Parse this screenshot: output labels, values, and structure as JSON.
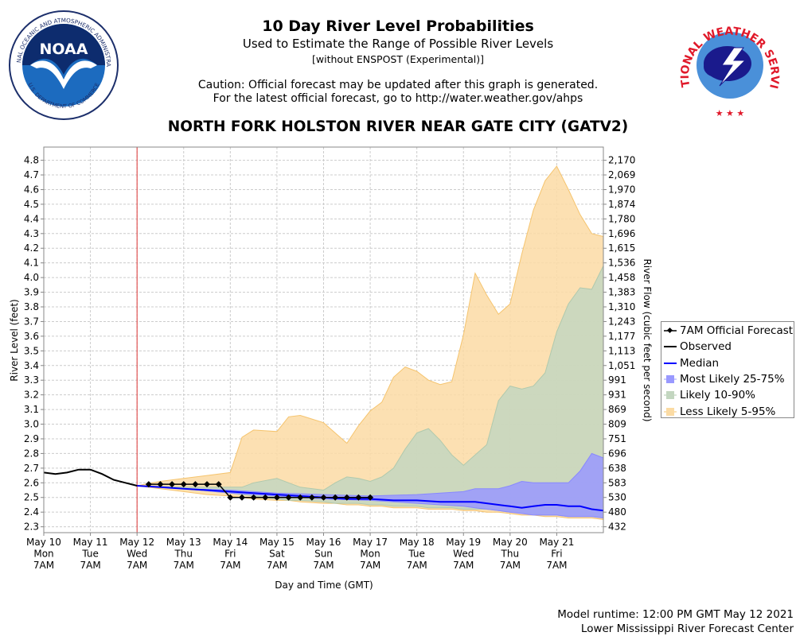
{
  "header": {
    "title": "10 Day River Level Probabilities",
    "subtitle": "Used to Estimate the Range of Possible River Levels",
    "subtitle2": "[without ENSPOST (Experimental)]",
    "caution_line1": "Caution: Official forecast may be updated after this graph is generated.",
    "caution_line2": "For the latest official forecast, go to http://water.weather.gov/ahps",
    "station": "NORTH FORK HOLSTON RIVER NEAR GATE CITY (GATV2)"
  },
  "logos": {
    "noaa_text": "NOAA",
    "noaa_ring": "NATIONAL OCEANIC AND ATMOSPHERIC ADMINISTRATION",
    "noaa_ring_bottom": "U.S. DEPARTMENT OF COMMERCE",
    "nws_ring": "NATIONAL WEATHER SERVICE"
  },
  "colors": {
    "observed": "#000000",
    "median": "#0000ff",
    "band_25_75": "#9999ff",
    "band_10_90": "#c3d6c0",
    "band_5_95": "#fbdba4",
    "now_line": "#dd3333"
  },
  "chart_data": {
    "type": "area",
    "xlabel": "Day and Time (GMT)",
    "ylabel": "River Level (feet)",
    "ylabel_right": "River Flow (cubic feet per second)",
    "ylim": [
      2.26,
      4.89
    ],
    "x_range_days": [
      0,
      12
    ],
    "x_ticks": [
      {
        "d": 0,
        "l1": "May 10",
        "l2": "Mon",
        "l3": "7AM"
      },
      {
        "d": 1,
        "l1": "May 11",
        "l2": "Tue",
        "l3": "7AM"
      },
      {
        "d": 2,
        "l1": "May 12",
        "l2": "Wed",
        "l3": "7AM"
      },
      {
        "d": 3,
        "l1": "May 13",
        "l2": "Thu",
        "l3": "7AM"
      },
      {
        "d": 4,
        "l1": "May 14",
        "l2": "Fri",
        "l3": "7AM"
      },
      {
        "d": 5,
        "l1": "May 15",
        "l2": "Sat",
        "l3": "7AM"
      },
      {
        "d": 6,
        "l1": "May 16",
        "l2": "Sun",
        "l3": "7AM"
      },
      {
        "d": 7,
        "l1": "May 17",
        "l2": "Mon",
        "l3": "7AM"
      },
      {
        "d": 8,
        "l1": "May 18",
        "l2": "Tue",
        "l3": "7AM"
      },
      {
        "d": 9,
        "l1": "May 19",
        "l2": "Wed",
        "l3": "7AM"
      },
      {
        "d": 10,
        "l1": "May 20",
        "l2": "Thu",
        "l3": "7AM"
      },
      {
        "d": 11,
        "l1": "May 21",
        "l2": "Fri",
        "l3": "7AM"
      }
    ],
    "y_ticks": [
      "2.3",
      "2.4",
      "2.5",
      "2.6",
      "2.7",
      "2.8",
      "2.9",
      "3.0",
      "3.1",
      "3.2",
      "3.3",
      "3.4",
      "3.5",
      "3.6",
      "3.7",
      "3.8",
      "3.9",
      "4.0",
      "4.1",
      "4.2",
      "4.3",
      "4.4",
      "4.5",
      "4.6",
      "4.7",
      "4.8"
    ],
    "flow_ticks": [
      "432",
      "480",
      "530",
      "583",
      "638",
      "696",
      "751",
      "809",
      "869",
      "931",
      "991",
      "1,051",
      "1,113",
      "1,177",
      "1,243",
      "1,310",
      "1,383",
      "1,458",
      "1,536",
      "1,615",
      "1,696",
      "1,780",
      "1,874",
      "1,970",
      "2,069",
      "2,170"
    ],
    "now_day": 2.0,
    "series": [
      {
        "name": "Observed",
        "x": [
          0,
          0.25,
          0.5,
          0.75,
          1.0,
          1.25,
          1.5,
          1.75,
          2.0
        ],
        "y": [
          2.67,
          2.66,
          2.67,
          2.69,
          2.69,
          2.66,
          2.62,
          2.6,
          2.58
        ]
      },
      {
        "name": "Median",
        "x": [
          2.0,
          2.5,
          3.0,
          3.5,
          4.0,
          4.5,
          5.0,
          5.5,
          6.0,
          6.5,
          7.0,
          7.5,
          8.0,
          8.5,
          9.0,
          9.25,
          9.5,
          9.75,
          10.0,
          10.25,
          10.5,
          10.75,
          11.0,
          11.25,
          11.5,
          11.75,
          12.0
        ],
        "y": [
          2.58,
          2.57,
          2.56,
          2.55,
          2.54,
          2.53,
          2.52,
          2.51,
          2.5,
          2.49,
          2.49,
          2.48,
          2.48,
          2.47,
          2.47,
          2.47,
          2.46,
          2.45,
          2.44,
          2.43,
          2.44,
          2.45,
          2.45,
          2.44,
          2.44,
          2.42,
          2.41
        ]
      },
      {
        "name": "7AM Official Forecast",
        "x": [
          2.25,
          2.5,
          2.75,
          3.0,
          3.25,
          3.5,
          3.75,
          4.0,
          4.25,
          4.5,
          4.75,
          5.0,
          5.25,
          5.5,
          5.75,
          6.0,
          6.25,
          6.5,
          6.75,
          7.0
        ],
        "y": [
          2.59,
          2.59,
          2.59,
          2.59,
          2.59,
          2.59,
          2.59,
          2.5,
          2.5,
          2.5,
          2.5,
          2.5,
          2.5,
          2.5,
          2.5,
          2.5,
          2.5,
          2.5,
          2.5,
          2.5
        ]
      },
      {
        "name": "Most Likely 25-75%",
        "x": [
          2.0,
          3.0,
          4.0,
          5.0,
          6.0,
          7.0,
          8.0,
          8.5,
          9.0,
          9.25,
          9.5,
          9.75,
          10.0,
          10.25,
          10.5,
          10.75,
          11.0,
          11.25,
          11.5,
          11.75,
          12.0
        ],
        "high": [
          2.58,
          2.56,
          2.55,
          2.53,
          2.52,
          2.51,
          2.52,
          2.53,
          2.54,
          2.56,
          2.56,
          2.56,
          2.58,
          2.61,
          2.6,
          2.6,
          2.6,
          2.6,
          2.68,
          2.8,
          2.77
        ],
        "low": [
          2.58,
          2.56,
          2.53,
          2.51,
          2.49,
          2.48,
          2.46,
          2.45,
          2.44,
          2.43,
          2.42,
          2.41,
          2.4,
          2.39,
          2.38,
          2.38,
          2.38,
          2.37,
          2.37,
          2.37,
          2.36
        ]
      },
      {
        "name": "Likely 10-90%",
        "x": [
          2.0,
          3.0,
          4.0,
          4.25,
          4.5,
          5.0,
          5.25,
          5.5,
          6.0,
          6.25,
          6.5,
          6.75,
          7.0,
          7.25,
          7.5,
          7.75,
          8.0,
          8.25,
          8.5,
          8.75,
          9.0,
          9.25,
          9.5,
          9.75,
          10.0,
          10.25,
          10.5,
          10.75,
          11.0,
          11.25,
          11.5,
          11.75,
          12.0
        ],
        "high": [
          2.58,
          2.57,
          2.57,
          2.57,
          2.6,
          2.63,
          2.6,
          2.57,
          2.55,
          2.6,
          2.64,
          2.63,
          2.61,
          2.64,
          2.7,
          2.83,
          2.94,
          2.97,
          2.89,
          2.79,
          2.72,
          2.79,
          2.86,
          3.16,
          3.26,
          3.24,
          3.26,
          3.35,
          3.63,
          3.82,
          3.93,
          3.92,
          4.08
        ],
        "low": [
          2.58,
          2.56,
          2.53,
          2.52,
          2.51,
          2.49,
          2.48,
          2.48,
          2.47,
          2.46,
          2.46,
          2.46,
          2.45,
          2.45,
          2.44,
          2.44,
          2.44,
          2.43,
          2.43,
          2.43,
          2.42,
          2.42,
          2.42,
          2.41,
          2.4,
          2.4,
          2.39,
          2.38,
          2.38,
          2.37,
          2.37,
          2.37,
          2.36
        ]
      },
      {
        "name": "Less Likely 5-95%",
        "x": [
          2.0,
          2.5,
          3.0,
          3.5,
          4.0,
          4.25,
          4.5,
          5.0,
          5.25,
          5.5,
          6.0,
          6.25,
          6.5,
          6.75,
          7.0,
          7.25,
          7.5,
          7.75,
          8.0,
          8.25,
          8.5,
          8.75,
          9.0,
          9.25,
          9.5,
          9.75,
          10.0,
          10.25,
          10.5,
          10.75,
          11.0,
          11.25,
          11.5,
          11.75,
          12.0
        ],
        "high": [
          2.58,
          2.61,
          2.63,
          2.65,
          2.67,
          2.91,
          2.96,
          2.95,
          3.05,
          3.06,
          3.01,
          2.94,
          2.87,
          2.99,
          3.09,
          3.15,
          3.32,
          3.39,
          3.36,
          3.3,
          3.27,
          3.29,
          3.61,
          4.03,
          3.88,
          3.75,
          3.82,
          4.16,
          4.46,
          4.66,
          4.76,
          4.6,
          4.43,
          4.3,
          4.28
        ],
        "low": [
          2.58,
          2.56,
          2.54,
          2.52,
          2.51,
          2.5,
          2.49,
          2.48,
          2.48,
          2.47,
          2.46,
          2.46,
          2.45,
          2.45,
          2.44,
          2.44,
          2.43,
          2.43,
          2.43,
          2.42,
          2.42,
          2.42,
          2.41,
          2.41,
          2.4,
          2.4,
          2.39,
          2.38,
          2.38,
          2.37,
          2.37,
          2.36,
          2.36,
          2.36,
          2.35
        ]
      }
    ],
    "legend": [
      "7AM Official Forecast",
      "Observed",
      "Median",
      "Most Likely 25-75%",
      "Likely 10-90%",
      "Less Likely 5-95%"
    ],
    "legend_position": "right"
  },
  "footer": {
    "runtime": "Model runtime: 12:00 PM GMT May 12 2021",
    "center": "Lower Mississippi River Forecast Center"
  }
}
